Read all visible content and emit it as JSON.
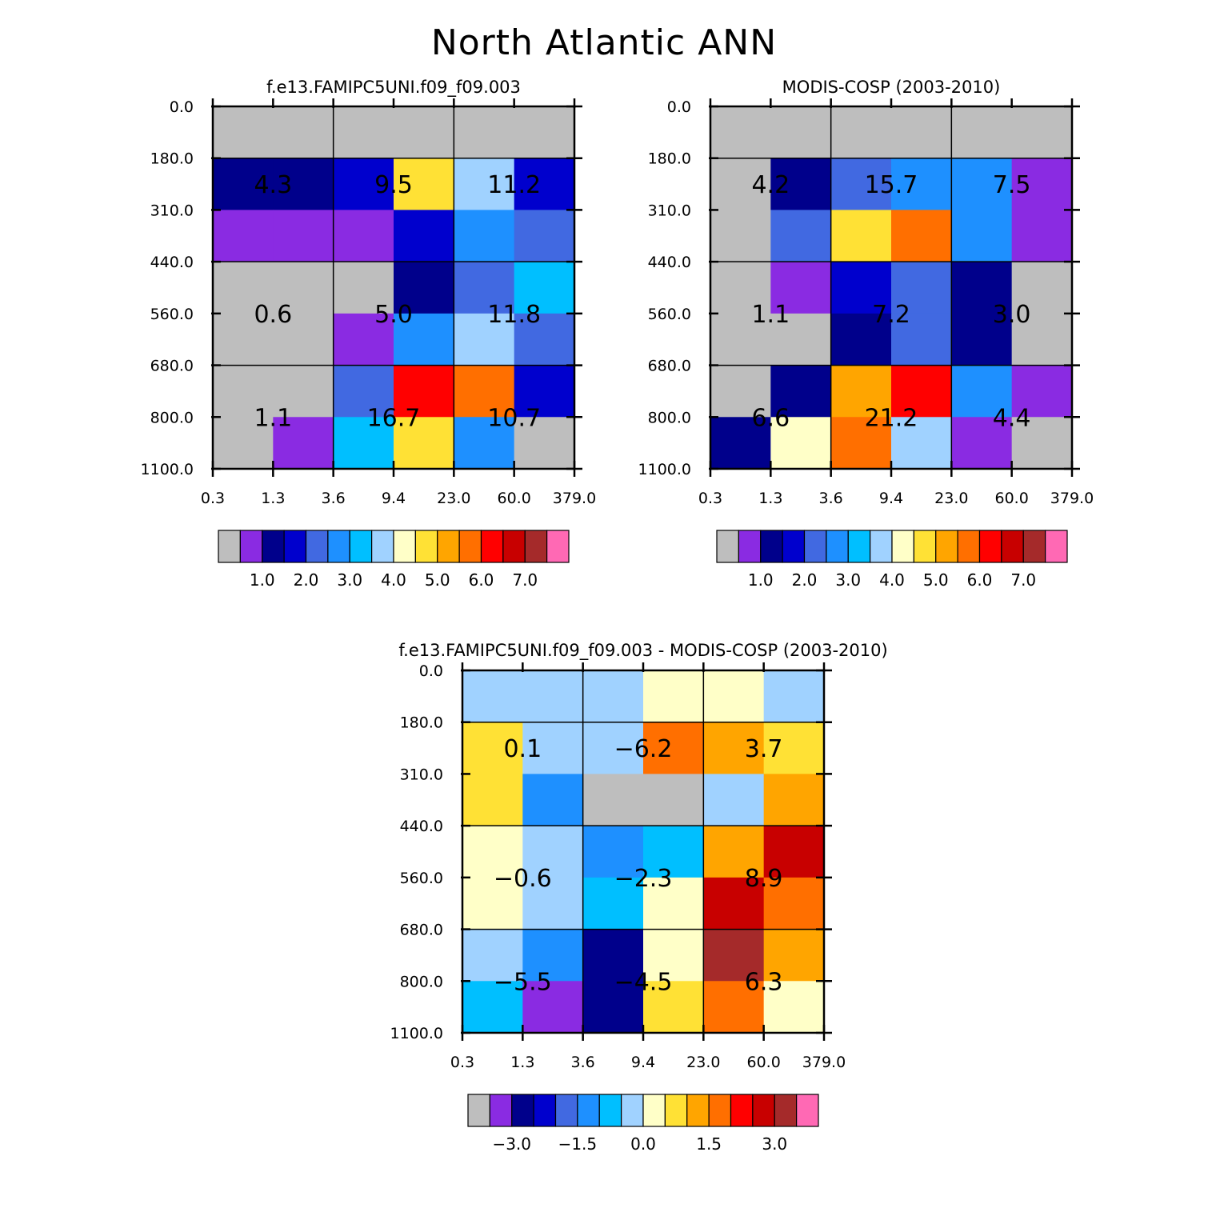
{
  "figure_title": "North Atlantic ANN",
  "x_ticks": [
    "0.3",
    "1.3",
    "3.6",
    "9.4",
    "23.0",
    "60.0",
    "379.0"
  ],
  "y_ticks": [
    "0.0",
    "180.0",
    "310.0",
    "440.0",
    "560.0",
    "680.0",
    "800.0",
    "1100.0"
  ],
  "palette": [
    "#bebebe",
    "#8a2be2",
    "#00008b",
    "#0000cd",
    "#4169e1",
    "#1e90ff",
    "#00bfff",
    "#a0d2ff",
    "#ffffc8",
    "#ffe135",
    "#ffa500",
    "#ff6f00",
    "#ff0000",
    "#c80000",
    "#a52a2a",
    "#ff69b4"
  ],
  "chart_data": [
    {
      "type": "heatmap",
      "title": "f.e13.FAMIPC5UNI.f09_f09.003",
      "x_ticks": [
        "0.3",
        "1.3",
        "3.6",
        "9.4",
        "23.0",
        "60.0",
        "379.0"
      ],
      "y_ticks": [
        "0.0",
        "180.0",
        "310.0",
        "440.0",
        "560.0",
        "680.0",
        "800.0",
        "1100.0"
      ],
      "cell_color_index": [
        [
          0,
          0,
          0,
          0,
          0,
          0
        ],
        [
          2,
          2,
          3,
          9,
          7,
          3
        ],
        [
          1,
          1,
          1,
          3,
          5,
          4
        ],
        [
          0,
          0,
          0,
          2,
          4,
          6
        ],
        [
          0,
          0,
          1,
          5,
          7,
          4
        ],
        [
          0,
          0,
          4,
          12,
          11,
          3
        ],
        [
          0,
          1,
          6,
          9,
          5,
          0
        ]
      ],
      "group_values": [
        [
          "4.3",
          "9.5",
          "11.2"
        ],
        [
          "0.6",
          "5.0",
          "11.8"
        ],
        [
          "1.1",
          "16.7",
          "10.7"
        ]
      ],
      "colorbar_labels": [
        "1.0",
        "2.0",
        "3.0",
        "4.0",
        "5.0",
        "6.0",
        "7.0"
      ]
    },
    {
      "type": "heatmap",
      "title": "MODIS-COSP (2003-2010)",
      "x_ticks": [
        "0.3",
        "1.3",
        "3.6",
        "9.4",
        "23.0",
        "60.0",
        "379.0"
      ],
      "y_ticks": [
        "0.0",
        "180.0",
        "310.0",
        "440.0",
        "560.0",
        "680.0",
        "800.0",
        "1100.0"
      ],
      "cell_color_index": [
        [
          0,
          0,
          0,
          0,
          0,
          0
        ],
        [
          0,
          2,
          4,
          5,
          5,
          1
        ],
        [
          0,
          4,
          9,
          11,
          5,
          1
        ],
        [
          0,
          1,
          3,
          4,
          2,
          0
        ],
        [
          0,
          0,
          2,
          4,
          2,
          0
        ],
        [
          0,
          2,
          10,
          12,
          5,
          1
        ],
        [
          2,
          8,
          11,
          7,
          1,
          0
        ]
      ],
      "group_values": [
        [
          "4.2",
          "15.7",
          "7.5"
        ],
        [
          "1.1",
          "7.2",
          "3.0"
        ],
        [
          "6.6",
          "21.2",
          "4.4"
        ]
      ],
      "colorbar_labels": [
        "1.0",
        "2.0",
        "3.0",
        "4.0",
        "5.0",
        "6.0",
        "7.0"
      ]
    },
    {
      "type": "heatmap",
      "title": "f.e13.FAMIPC5UNI.f09_f09.003 - MODIS-COSP (2003-2010)",
      "x_ticks": [
        "0.3",
        "1.3",
        "3.6",
        "9.4",
        "23.0",
        "60.0",
        "379.0"
      ],
      "y_ticks": [
        "0.0",
        "180.0",
        "310.0",
        "440.0",
        "560.0",
        "680.0",
        "800.0",
        "1100.0"
      ],
      "cell_color_index": [
        [
          7,
          7,
          7,
          8,
          8,
          7
        ],
        [
          9,
          7,
          7,
          11,
          10,
          9
        ],
        [
          9,
          5,
          0,
          0,
          7,
          10
        ],
        [
          8,
          7,
          5,
          6,
          10,
          13
        ],
        [
          8,
          7,
          6,
          8,
          13,
          11
        ],
        [
          7,
          5,
          2,
          8,
          14,
          10
        ],
        [
          6,
          1,
          2,
          9,
          11,
          8
        ]
      ],
      "group_values": [
        [
          "0.1",
          "-6.2",
          "3.7"
        ],
        [
          "-0.6",
          "-2.3",
          "8.9"
        ],
        [
          "-5.5",
          "-4.5",
          "6.3"
        ]
      ],
      "colorbar_labels": [
        "-3.0",
        "-1.5",
        "0.0",
        "1.5",
        "3.0"
      ]
    }
  ]
}
